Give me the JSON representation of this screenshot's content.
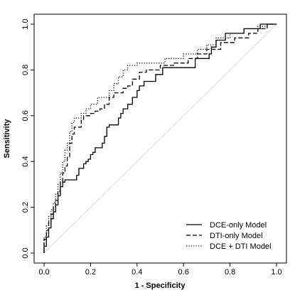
{
  "chart_data": {
    "type": "line",
    "title": "",
    "xlabel": "1 - Specificity",
    "ylabel": "Sensitivity",
    "xlim": [
      0,
      1
    ],
    "ylim": [
      0,
      1
    ],
    "xticks": [
      "0.0",
      "0.2",
      "0.4",
      "0.6",
      "0.8",
      "1.0"
    ],
    "yticks": [
      "0.0",
      "0.2",
      "0.4",
      "0.6",
      "0.8",
      "1.0"
    ],
    "grid": false,
    "legend_position": "bottom-right",
    "reference_line": {
      "x": [
        0,
        1
      ],
      "y": [
        0,
        1
      ],
      "color": "#d9d9d9"
    },
    "series": [
      {
        "name": "DCE-only Model",
        "style": "solid",
        "color": "#000000",
        "points": [
          [
            0.0,
            0.0
          ],
          [
            0.0,
            0.03
          ],
          [
            0.01,
            0.03
          ],
          [
            0.01,
            0.07
          ],
          [
            0.02,
            0.07
          ],
          [
            0.02,
            0.11
          ],
          [
            0.03,
            0.11
          ],
          [
            0.03,
            0.15
          ],
          [
            0.04,
            0.15
          ],
          [
            0.04,
            0.18
          ],
          [
            0.05,
            0.18
          ],
          [
            0.05,
            0.21
          ],
          [
            0.06,
            0.21
          ],
          [
            0.06,
            0.25
          ],
          [
            0.07,
            0.25
          ],
          [
            0.07,
            0.29
          ],
          [
            0.08,
            0.29
          ],
          [
            0.08,
            0.31
          ],
          [
            0.09,
            0.31
          ],
          [
            0.09,
            0.32
          ],
          [
            0.14,
            0.32
          ],
          [
            0.14,
            0.34
          ],
          [
            0.15,
            0.34
          ],
          [
            0.15,
            0.37
          ],
          [
            0.17,
            0.37
          ],
          [
            0.17,
            0.39
          ],
          [
            0.18,
            0.39
          ],
          [
            0.18,
            0.4
          ],
          [
            0.19,
            0.4
          ],
          [
            0.19,
            0.41
          ],
          [
            0.2,
            0.41
          ],
          [
            0.2,
            0.43
          ],
          [
            0.21,
            0.43
          ],
          [
            0.21,
            0.44
          ],
          [
            0.22,
            0.44
          ],
          [
            0.22,
            0.46
          ],
          [
            0.25,
            0.46
          ],
          [
            0.25,
            0.48
          ],
          [
            0.26,
            0.48
          ],
          [
            0.26,
            0.51
          ],
          [
            0.27,
            0.51
          ],
          [
            0.27,
            0.55
          ],
          [
            0.28,
            0.55
          ],
          [
            0.28,
            0.56
          ],
          [
            0.32,
            0.56
          ],
          [
            0.32,
            0.59
          ],
          [
            0.33,
            0.59
          ],
          [
            0.33,
            0.61
          ],
          [
            0.34,
            0.61
          ],
          [
            0.34,
            0.63
          ],
          [
            0.36,
            0.63
          ],
          [
            0.36,
            0.65
          ],
          [
            0.38,
            0.65
          ],
          [
            0.38,
            0.68
          ],
          [
            0.4,
            0.68
          ],
          [
            0.4,
            0.71
          ],
          [
            0.41,
            0.71
          ],
          [
            0.41,
            0.73
          ],
          [
            0.43,
            0.73
          ],
          [
            0.43,
            0.75
          ],
          [
            0.48,
            0.75
          ],
          [
            0.48,
            0.78
          ],
          [
            0.51,
            0.78
          ],
          [
            0.51,
            0.81
          ],
          [
            0.65,
            0.81
          ],
          [
            0.65,
            0.85
          ],
          [
            0.71,
            0.85
          ],
          [
            0.71,
            0.87
          ],
          [
            0.72,
            0.87
          ],
          [
            0.72,
            0.9
          ],
          [
            0.74,
            0.9
          ],
          [
            0.74,
            0.93
          ],
          [
            0.78,
            0.93
          ],
          [
            0.78,
            0.96
          ],
          [
            0.86,
            0.96
          ],
          [
            0.86,
            0.98
          ],
          [
            0.93,
            0.98
          ],
          [
            0.93,
            1.0
          ],
          [
            1.0,
            1.0
          ]
        ]
      },
      {
        "name": "DTI-only Model",
        "style": "dashed",
        "color": "#000000",
        "points": [
          [
            0.0,
            0.0
          ],
          [
            0.0,
            0.06
          ],
          [
            0.01,
            0.06
          ],
          [
            0.01,
            0.1
          ],
          [
            0.02,
            0.1
          ],
          [
            0.02,
            0.14
          ],
          [
            0.03,
            0.14
          ],
          [
            0.03,
            0.17
          ],
          [
            0.04,
            0.17
          ],
          [
            0.04,
            0.2
          ],
          [
            0.05,
            0.2
          ],
          [
            0.05,
            0.23
          ],
          [
            0.06,
            0.23
          ],
          [
            0.06,
            0.27
          ],
          [
            0.07,
            0.27
          ],
          [
            0.07,
            0.31
          ],
          [
            0.08,
            0.31
          ],
          [
            0.08,
            0.35
          ],
          [
            0.09,
            0.35
          ],
          [
            0.09,
            0.38
          ],
          [
            0.1,
            0.38
          ],
          [
            0.1,
            0.42
          ],
          [
            0.11,
            0.42
          ],
          [
            0.11,
            0.48
          ],
          [
            0.12,
            0.48
          ],
          [
            0.12,
            0.52
          ],
          [
            0.13,
            0.52
          ],
          [
            0.13,
            0.55
          ],
          [
            0.16,
            0.55
          ],
          [
            0.16,
            0.58
          ],
          [
            0.17,
            0.58
          ],
          [
            0.17,
            0.6
          ],
          [
            0.2,
            0.6
          ],
          [
            0.2,
            0.61
          ],
          [
            0.22,
            0.61
          ],
          [
            0.22,
            0.62
          ],
          [
            0.24,
            0.62
          ],
          [
            0.24,
            0.63
          ],
          [
            0.26,
            0.63
          ],
          [
            0.26,
            0.65
          ],
          [
            0.28,
            0.65
          ],
          [
            0.28,
            0.68
          ],
          [
            0.3,
            0.68
          ],
          [
            0.3,
            0.7
          ],
          [
            0.34,
            0.7
          ],
          [
            0.34,
            0.72
          ],
          [
            0.36,
            0.72
          ],
          [
            0.36,
            0.73
          ],
          [
            0.38,
            0.73
          ],
          [
            0.38,
            0.76
          ],
          [
            0.41,
            0.76
          ],
          [
            0.41,
            0.79
          ],
          [
            0.44,
            0.79
          ],
          [
            0.44,
            0.8
          ],
          [
            0.5,
            0.8
          ],
          [
            0.5,
            0.82
          ],
          [
            0.56,
            0.82
          ],
          [
            0.56,
            0.83
          ],
          [
            0.62,
            0.83
          ],
          [
            0.62,
            0.85
          ],
          [
            0.66,
            0.85
          ],
          [
            0.66,
            0.87
          ],
          [
            0.7,
            0.87
          ],
          [
            0.7,
            0.89
          ],
          [
            0.76,
            0.89
          ],
          [
            0.76,
            0.92
          ],
          [
            0.82,
            0.92
          ],
          [
            0.82,
            0.94
          ],
          [
            0.88,
            0.94
          ],
          [
            0.88,
            0.96
          ],
          [
            0.92,
            0.96
          ],
          [
            0.92,
            0.98
          ],
          [
            0.96,
            0.98
          ],
          [
            0.96,
            1.0
          ],
          [
            1.0,
            1.0
          ]
        ]
      },
      {
        "name": "DCE + DTI Model",
        "style": "dotted",
        "color": "#000000",
        "points": [
          [
            0.0,
            0.0
          ],
          [
            0.0,
            0.07
          ],
          [
            0.01,
            0.07
          ],
          [
            0.01,
            0.12
          ],
          [
            0.02,
            0.12
          ],
          [
            0.02,
            0.16
          ],
          [
            0.03,
            0.16
          ],
          [
            0.03,
            0.19
          ],
          [
            0.04,
            0.19
          ],
          [
            0.04,
            0.22
          ],
          [
            0.05,
            0.22
          ],
          [
            0.05,
            0.26
          ],
          [
            0.06,
            0.26
          ],
          [
            0.06,
            0.3
          ],
          [
            0.07,
            0.3
          ],
          [
            0.07,
            0.35
          ],
          [
            0.08,
            0.35
          ],
          [
            0.08,
            0.4
          ],
          [
            0.09,
            0.4
          ],
          [
            0.09,
            0.45
          ],
          [
            0.1,
            0.45
          ],
          [
            0.1,
            0.48
          ],
          [
            0.11,
            0.48
          ],
          [
            0.11,
            0.53
          ],
          [
            0.12,
            0.53
          ],
          [
            0.12,
            0.57
          ],
          [
            0.13,
            0.57
          ],
          [
            0.13,
            0.59
          ],
          [
            0.16,
            0.59
          ],
          [
            0.16,
            0.61
          ],
          [
            0.18,
            0.61
          ],
          [
            0.18,
            0.63
          ],
          [
            0.2,
            0.63
          ],
          [
            0.2,
            0.65
          ],
          [
            0.23,
            0.65
          ],
          [
            0.23,
            0.68
          ],
          [
            0.28,
            0.68
          ],
          [
            0.28,
            0.71
          ],
          [
            0.3,
            0.71
          ],
          [
            0.3,
            0.74
          ],
          [
            0.32,
            0.74
          ],
          [
            0.32,
            0.77
          ],
          [
            0.34,
            0.77
          ],
          [
            0.34,
            0.8
          ],
          [
            0.36,
            0.8
          ],
          [
            0.36,
            0.82
          ],
          [
            0.4,
            0.82
          ],
          [
            0.4,
            0.83
          ],
          [
            0.52,
            0.83
          ],
          [
            0.52,
            0.85
          ],
          [
            0.6,
            0.85
          ],
          [
            0.6,
            0.87
          ],
          [
            0.66,
            0.87
          ],
          [
            0.66,
            0.89
          ],
          [
            0.7,
            0.89
          ],
          [
            0.7,
            0.91
          ],
          [
            0.74,
            0.91
          ],
          [
            0.74,
            0.94
          ],
          [
            0.8,
            0.94
          ],
          [
            0.8,
            0.96
          ],
          [
            0.86,
            0.96
          ],
          [
            0.86,
            0.98
          ],
          [
            0.92,
            0.98
          ],
          [
            0.92,
            0.99
          ],
          [
            0.96,
            0.99
          ],
          [
            0.96,
            1.0
          ],
          [
            1.0,
            1.0
          ]
        ]
      }
    ]
  }
}
